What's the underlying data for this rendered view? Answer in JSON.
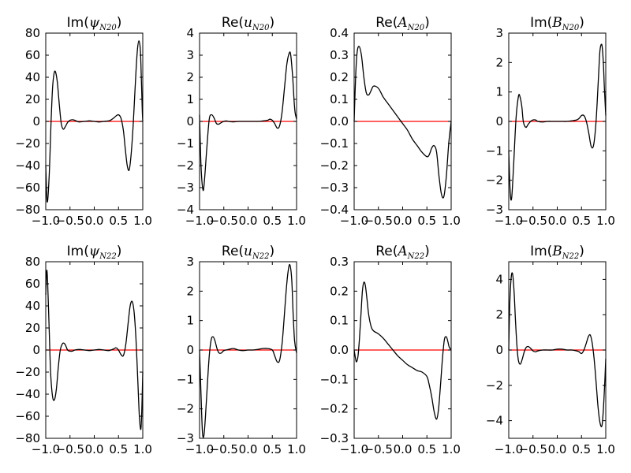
{
  "chart_data": [
    {
      "type": "line",
      "title": "Im(ψN20)",
      "title_parts": {
        "prefix": "Im(",
        "symbol": "ψ",
        "subscript": "N20",
        "suffix": ")"
      },
      "xlim": [
        -1.0,
        1.0
      ],
      "ylim": [
        -80,
        80
      ],
      "xticks": [
        -1.0,
        -0.5,
        0.0,
        0.5,
        1.0
      ],
      "xtick_labels": [
        "−1.0",
        "−0.5",
        "0.0",
        "0.5",
        "1.0"
      ],
      "yticks": [
        -80,
        -60,
        -40,
        -20,
        0,
        20,
        40,
        60,
        80
      ],
      "ytick_labels": [
        "−80",
        "−60",
        "−40",
        "−20",
        "0",
        "20",
        "40",
        "60",
        "80"
      ],
      "series": [
        {
          "color": "#000000",
          "x": [
            -1.0,
            -0.97,
            -0.93,
            -0.89,
            -0.86,
            -0.83,
            -0.8,
            -0.76,
            -0.72,
            -0.68,
            -0.64,
            -0.6,
            -0.55,
            -0.5,
            -0.45,
            -0.4,
            -0.35,
            -0.3,
            -0.2,
            -0.1,
            0.0,
            0.1,
            0.2,
            0.3,
            0.35,
            0.4,
            0.45,
            0.5,
            0.55,
            0.6,
            0.64,
            0.68,
            0.72,
            0.76,
            0.8,
            0.83,
            0.86,
            0.89,
            0.92,
            0.95,
            0.97,
            0.99,
            1.0
          ],
          "y": [
            -40,
            -73,
            -50,
            0,
            30,
            43,
            45,
            35,
            15,
            -2,
            -7,
            -5,
            -1,
            1,
            1.5,
            1,
            0,
            -0.5,
            0,
            0.5,
            0,
            -0.5,
            0,
            0.5,
            1.5,
            3,
            5,
            6,
            3,
            -8,
            -25,
            -40,
            -44,
            -30,
            -5,
            20,
            45,
            65,
            73,
            65,
            40,
            10,
            0
          ]
        }
      ],
      "reference_line": {
        "y": 0,
        "color": "#ff0000"
      }
    },
    {
      "type": "line",
      "title": "Re(uN20)",
      "title_parts": {
        "prefix": "Re(",
        "symbol": "u",
        "subscript": "N20",
        "suffix": ")"
      },
      "xlim": [
        -1.0,
        1.0
      ],
      "ylim": [
        -4,
        4
      ],
      "xticks": [
        -1.0,
        -0.5,
        0.0,
        0.5,
        1.0
      ],
      "xtick_labels": [
        "−1.0",
        "−0.5",
        "0.0",
        "0.5",
        "1.0"
      ],
      "yticks": [
        -4,
        -3,
        -2,
        -1,
        0,
        1,
        2,
        3,
        4
      ],
      "ytick_labels": [
        "−4",
        "−3",
        "−2",
        "−1",
        "0",
        "1",
        "2",
        "3",
        "4"
      ],
      "series": [
        {
          "color": "#000000",
          "x": [
            -1.0,
            -0.97,
            -0.93,
            -0.9,
            -0.85,
            -0.8,
            -0.75,
            -0.7,
            -0.65,
            -0.6,
            -0.55,
            -0.5,
            -0.45,
            -0.4,
            -0.3,
            -0.2,
            -0.1,
            0.0,
            0.1,
            0.2,
            0.3,
            0.4,
            0.45,
            0.5,
            0.55,
            0.6,
            0.65,
            0.7,
            0.75,
            0.8,
            0.85,
            0.88,
            0.92,
            0.95,
            0.97,
            1.0
          ],
          "y": [
            0.3,
            -2.0,
            -3.1,
            -2.7,
            -1.2,
            0.1,
            0.3,
            0.15,
            -0.1,
            -0.12,
            -0.05,
            0.0,
            0.02,
            0.0,
            -0.02,
            0.0,
            0.0,
            0.0,
            0.0,
            0.0,
            0.02,
            0.05,
            0.1,
            0.05,
            -0.1,
            -0.3,
            -0.2,
            0.4,
            1.5,
            2.6,
            3.1,
            3.0,
            2.0,
            0.9,
            0.4,
            0.1
          ]
        }
      ],
      "reference_line": {
        "y": 0,
        "color": "#ff0000"
      }
    },
    {
      "type": "line",
      "title": "Re(AN20)",
      "title_parts": {
        "prefix": "Re(",
        "symbol": "A",
        "subscript": "N20",
        "suffix": ")"
      },
      "xlim": [
        -1.0,
        1.0
      ],
      "ylim": [
        -0.4,
        0.4
      ],
      "xticks": [
        -1.0,
        -0.5,
        0.0,
        0.5,
        1.0
      ],
      "xtick_labels": [
        "−1.0",
        "−0.5",
        "0.0",
        "0.5",
        "1.0"
      ],
      "yticks": [
        -0.4,
        -0.3,
        -0.2,
        -0.1,
        0.0,
        0.1,
        0.2,
        0.3,
        0.4
      ],
      "ytick_labels": [
        "−0.4",
        "−0.3",
        "−0.2",
        "−0.1",
        "0.0",
        "0.1",
        "0.2",
        "0.3",
        "0.4"
      ],
      "series": [
        {
          "color": "#000000",
          "x": [
            -1.0,
            -0.97,
            -0.94,
            -0.9,
            -0.85,
            -0.8,
            -0.75,
            -0.7,
            -0.65,
            -0.6,
            -0.5,
            -0.4,
            -0.3,
            -0.2,
            -0.1,
            0.0,
            0.1,
            0.2,
            0.3,
            0.4,
            0.5,
            0.55,
            0.6,
            0.65,
            0.7,
            0.75,
            0.8,
            0.85,
            0.9,
            0.95,
            1.0
          ],
          "y": [
            0.0,
            0.2,
            0.31,
            0.34,
            0.3,
            0.2,
            0.13,
            0.12,
            0.14,
            0.16,
            0.15,
            0.11,
            0.08,
            0.05,
            0.02,
            -0.01,
            -0.04,
            -0.08,
            -0.11,
            -0.14,
            -0.16,
            -0.15,
            -0.12,
            -0.11,
            -0.14,
            -0.25,
            -0.33,
            -0.34,
            -0.25,
            -0.1,
            0.0
          ]
        }
      ],
      "reference_line": {
        "y": 0,
        "color": "#ff0000"
      }
    },
    {
      "type": "line",
      "title": "Im(BN20)",
      "title_parts": {
        "prefix": "Im(",
        "symbol": "B",
        "subscript": "N20",
        "suffix": ")"
      },
      "xlim": [
        -1.0,
        1.0
      ],
      "ylim": [
        -3,
        3
      ],
      "xticks": [
        -1.0,
        -0.5,
        0.0,
        0.5,
        1.0
      ],
      "xtick_labels": [
        "−1.0",
        "−0.5",
        "0.0",
        "0.5",
        "1.0"
      ],
      "yticks": [
        -3,
        -2,
        -1,
        0,
        1,
        2,
        3
      ],
      "ytick_labels": [
        "−3",
        "−2",
        "−1",
        "0",
        "1",
        "2",
        "3"
      ],
      "series": [
        {
          "color": "#000000",
          "x": [
            -1.0,
            -0.97,
            -0.94,
            -0.9,
            -0.85,
            -0.8,
            -0.77,
            -0.73,
            -0.7,
            -0.65,
            -0.6,
            -0.55,
            -0.5,
            -0.45,
            -0.4,
            -0.3,
            -0.2,
            -0.1,
            0.0,
            0.1,
            0.2,
            0.3,
            0.4,
            0.45,
            0.5,
            0.55,
            0.6,
            0.65,
            0.7,
            0.75,
            0.8,
            0.85,
            0.88,
            0.92,
            0.95,
            0.97,
            1.0
          ],
          "y": [
            -1.0,
            -2.4,
            -2.6,
            -1.5,
            0.1,
            0.85,
            0.85,
            0.5,
            0.0,
            -0.2,
            -0.1,
            0.0,
            0.05,
            0.05,
            0.0,
            -0.02,
            0.0,
            0.0,
            0.0,
            0.0,
            0.0,
            0.02,
            0.05,
            0.1,
            0.2,
            0.2,
            0.0,
            -0.4,
            -0.85,
            -0.8,
            0.0,
            1.5,
            2.4,
            2.6,
            2.0,
            1.2,
            0.2
          ]
        }
      ],
      "reference_line": {
        "y": 0,
        "color": "#ff0000"
      }
    },
    {
      "type": "line",
      "title": "Im(ψN22)",
      "title_parts": {
        "prefix": "Im(",
        "symbol": "ψ",
        "subscript": "N22",
        "suffix": ")"
      },
      "xlim": [
        -1.0,
        1.0
      ],
      "ylim": [
        -80,
        80
      ],
      "xticks": [
        -1.0,
        -0.5,
        0.0,
        0.5,
        1.0
      ],
      "xtick_labels": [
        "−1.0",
        "−0.5",
        "0.0",
        "0.5",
        "1.0"
      ],
      "yticks": [
        -80,
        -60,
        -40,
        -20,
        0,
        20,
        40,
        60,
        80
      ],
      "ytick_labels": [
        "−80",
        "−60",
        "−40",
        "−20",
        "0",
        "20",
        "40",
        "60",
        "80"
      ],
      "series": [
        {
          "color": "#000000",
          "x": [
            -1.0,
            -0.98,
            -0.96,
            -0.93,
            -0.9,
            -0.86,
            -0.82,
            -0.78,
            -0.74,
            -0.7,
            -0.65,
            -0.6,
            -0.55,
            -0.5,
            -0.45,
            -0.4,
            -0.3,
            -0.2,
            -0.1,
            0.0,
            0.1,
            0.2,
            0.3,
            0.4,
            0.45,
            0.5,
            0.55,
            0.6,
            0.65,
            0.7,
            0.74,
            0.78,
            0.82,
            0.86,
            0.9,
            0.93,
            0.96,
            0.98,
            1.0
          ],
          "y": [
            50,
            72,
            60,
            20,
            -20,
            -42,
            -45,
            -35,
            -15,
            0,
            6,
            5,
            0,
            -1,
            -1,
            0,
            0.5,
            0,
            -0.5,
            0,
            0.5,
            0,
            -0.5,
            1,
            2,
            0,
            -4,
            -5,
            5,
            25,
            40,
            44,
            35,
            10,
            -30,
            -60,
            -72,
            -55,
            -20
          ]
        }
      ],
      "reference_line": {
        "y": 0,
        "color": "#ff0000"
      }
    },
    {
      "type": "line",
      "title": "Re(uN22)",
      "title_parts": {
        "prefix": "Re(",
        "symbol": "u",
        "subscript": "N22",
        "suffix": ")"
      },
      "xlim": [
        -1.0,
        1.0
      ],
      "ylim": [
        -3,
        3
      ],
      "xticks": [
        -1.0,
        -0.5,
        0.0,
        0.5,
        1.0
      ],
      "xtick_labels": [
        "−1.0",
        "−0.5",
        "0.0",
        "0.5",
        "1.0"
      ],
      "yticks": [
        -3,
        -2,
        -1,
        0,
        1,
        2,
        3
      ],
      "ytick_labels": [
        "−3",
        "−2",
        "−1",
        "0",
        "1",
        "2",
        "3"
      ],
      "series": [
        {
          "color": "#000000",
          "x": [
            -1.0,
            -0.97,
            -0.94,
            -0.91,
            -0.88,
            -0.84,
            -0.8,
            -0.76,
            -0.72,
            -0.68,
            -0.64,
            -0.6,
            -0.55,
            -0.5,
            -0.4,
            -0.3,
            -0.2,
            -0.1,
            0.0,
            0.1,
            0.2,
            0.3,
            0.4,
            0.5,
            0.55,
            0.6,
            0.65,
            0.7,
            0.74,
            0.78,
            0.82,
            0.86,
            0.9,
            0.93,
            0.96,
            1.0
          ],
          "y": [
            0.0,
            -1.5,
            -2.8,
            -2.9,
            -2.3,
            -1.2,
            -0.2,
            0.35,
            0.45,
            0.3,
            0.05,
            -0.1,
            -0.1,
            -0.02,
            0.02,
            0.05,
            0.0,
            -0.02,
            0.0,
            0.0,
            0.02,
            0.05,
            0.05,
            0.0,
            -0.2,
            -0.4,
            -0.35,
            0.2,
            1.0,
            1.9,
            2.6,
            2.9,
            2.4,
            1.2,
            0.3,
            -0.1
          ]
        }
      ],
      "reference_line": {
        "y": 0,
        "color": "#ff0000"
      }
    },
    {
      "type": "line",
      "title": "Re(AN22)",
      "title_parts": {
        "prefix": "Re(",
        "symbol": "A",
        "subscript": "N22",
        "suffix": ")"
      },
      "xlim": [
        -1.0,
        1.0
      ],
      "ylim": [
        -0.3,
        0.3
      ],
      "xticks": [
        -1.0,
        -0.5,
        0.0,
        0.5,
        1.0
      ],
      "xtick_labels": [
        "−1.0",
        "−0.5",
        "0.0",
        "0.5",
        "1.0"
      ],
      "yticks": [
        -0.3,
        -0.2,
        -0.1,
        0.0,
        0.1,
        0.2,
        0.3
      ],
      "ytick_labels": [
        "−0.3",
        "−0.2",
        "−0.1",
        "0.0",
        "0.1",
        "0.2",
        "0.3"
      ],
      "series": [
        {
          "color": "#000000",
          "x": [
            -1.0,
            -0.97,
            -0.95,
            -0.92,
            -0.89,
            -0.86,
            -0.83,
            -0.8,
            -0.77,
            -0.74,
            -0.7,
            -0.65,
            -0.6,
            -0.5,
            -0.4,
            -0.3,
            -0.2,
            -0.1,
            0.0,
            0.1,
            0.2,
            0.3,
            0.4,
            0.5,
            0.55,
            0.6,
            0.65,
            0.7,
            0.74,
            0.78,
            0.82,
            0.86,
            0.9,
            0.93,
            0.96,
            1.0
          ],
          "y": [
            0.0,
            -0.03,
            -0.04,
            -0.02,
            0.04,
            0.12,
            0.2,
            0.23,
            0.22,
            0.18,
            0.12,
            0.08,
            0.065,
            0.055,
            0.04,
            0.02,
            0.0,
            -0.02,
            -0.035,
            -0.05,
            -0.06,
            -0.07,
            -0.075,
            -0.09,
            -0.12,
            -0.16,
            -0.21,
            -0.235,
            -0.2,
            -0.12,
            -0.03,
            0.035,
            0.045,
            0.03,
            0.01,
            0.0
          ]
        }
      ],
      "reference_line": {
        "y": 0,
        "color": "#ff0000"
      }
    },
    {
      "type": "line",
      "title": "Im(BN22)",
      "title_parts": {
        "prefix": "Im(",
        "symbol": "B",
        "subscript": "N22",
        "suffix": ")"
      },
      "xlim": [
        -1.0,
        1.0
      ],
      "ylim": [
        -5,
        5
      ],
      "xticks": [
        -1.0,
        -0.5,
        0.0,
        0.5,
        1.0
      ],
      "xtick_labels": [
        "−1.0",
        "−0.5",
        "0.0",
        "0.5",
        "1.0"
      ],
      "yticks": [
        -4,
        -2,
        0,
        2,
        4
      ],
      "ytick_labels": [
        "−4",
        "−2",
        "0",
        "2",
        "4"
      ],
      "series": [
        {
          "color": "#000000",
          "x": [
            -1.0,
            -0.98,
            -0.95,
            -0.92,
            -0.89,
            -0.86,
            -0.83,
            -0.8,
            -0.76,
            -0.72,
            -0.68,
            -0.64,
            -0.6,
            -0.55,
            -0.5,
            -0.45,
            -0.4,
            -0.3,
            -0.2,
            -0.1,
            0.0,
            0.1,
            0.2,
            0.3,
            0.4,
            0.45,
            0.5,
            0.55,
            0.6,
            0.64,
            0.68,
            0.72,
            0.76,
            0.8,
            0.84,
            0.88,
            0.92,
            0.95,
            0.98,
            1.0
          ],
          "y": [
            0.0,
            2.5,
            4.1,
            4.3,
            3.3,
            1.6,
            0.2,
            -0.6,
            -0.8,
            -0.5,
            -0.1,
            0.15,
            0.2,
            0.1,
            -0.05,
            -0.1,
            -0.05,
            0.0,
            0.0,
            0.0,
            0.05,
            0.05,
            0.0,
            0.0,
            -0.05,
            -0.1,
            -0.2,
            0.0,
            0.4,
            0.75,
            0.85,
            0.4,
            -0.5,
            -1.8,
            -3.2,
            -4.1,
            -4.3,
            -3.4,
            -1.8,
            -0.5
          ]
        }
      ],
      "reference_line": {
        "y": 0,
        "color": "#ff0000"
      }
    }
  ]
}
